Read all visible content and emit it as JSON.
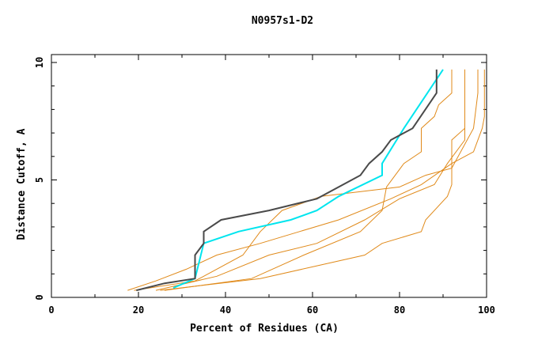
{
  "chart_data": {
    "type": "line",
    "title": "N0957s1-D2",
    "xlabel": "Percent of Residues (CA)",
    "ylabel": "Distance Cutoff, A",
    "xlim": [
      0,
      100
    ],
    "ylim": [
      0,
      10
    ],
    "x_ticks": [
      0,
      20,
      40,
      60,
      80,
      100
    ],
    "y_ticks": [
      0,
      5,
      10
    ],
    "grid": false,
    "colors": {
      "dark": "#4a4a4a",
      "cyan": "#00e5ee",
      "orange": "#e08a1a"
    },
    "series": [
      {
        "color": "#4a4a4a",
        "points": [
          [
            19.5,
            0.3
          ],
          [
            26,
            0.6
          ],
          [
            33,
            0.8
          ],
          [
            33,
            1.8
          ],
          [
            35,
            2.3
          ],
          [
            35,
            2.8
          ],
          [
            39,
            3.3
          ],
          [
            50,
            3.7
          ],
          [
            61,
            4.2
          ],
          [
            71,
            5.2
          ],
          [
            73,
            5.7
          ],
          [
            76,
            6.2
          ],
          [
            78,
            6.7
          ],
          [
            83,
            7.2
          ],
          [
            88.5,
            8.7
          ],
          [
            88.5,
            9.7
          ]
        ]
      },
      {
        "color": "#00e5ee",
        "points": [
          [
            28,
            0.4
          ],
          [
            33,
            0.8
          ],
          [
            35,
            2.3
          ],
          [
            43,
            2.8
          ],
          [
            55,
            3.3
          ],
          [
            61,
            3.7
          ],
          [
            66,
            4.3
          ],
          [
            76,
            5.2
          ],
          [
            76,
            5.7
          ],
          [
            81,
            7.2
          ],
          [
            90,
            9.7
          ]
        ]
      },
      {
        "color": "#e08a1a",
        "points": [
          [
            17.5,
            0.3
          ],
          [
            24,
            0.7
          ],
          [
            31,
            1.2
          ],
          [
            38,
            1.8
          ],
          [
            48,
            2.3
          ],
          [
            57,
            2.8
          ],
          [
            66,
            3.3
          ],
          [
            78,
            4.2
          ],
          [
            85,
            4.8
          ],
          [
            92,
            5.7
          ],
          [
            97,
            6.2
          ],
          [
            99,
            7.2
          ],
          [
            99.5,
            7.7
          ],
          [
            99.5,
            9.7
          ]
        ]
      },
      {
        "color": "#e08a1a",
        "points": [
          [
            19,
            0.3
          ],
          [
            33,
            0.7
          ],
          [
            44,
            1.8
          ],
          [
            48,
            2.8
          ],
          [
            53,
            3.7
          ],
          [
            62,
            4.3
          ],
          [
            80,
            4.7
          ],
          [
            86,
            5.2
          ],
          [
            92,
            5.5
          ],
          [
            97,
            7.2
          ],
          [
            98,
            8.7
          ],
          [
            98,
            9.7
          ]
        ]
      },
      {
        "color": "#e08a1a",
        "points": [
          [
            24,
            0.3
          ],
          [
            38,
            0.9
          ],
          [
            50,
            1.8
          ],
          [
            61,
            2.3
          ],
          [
            72,
            3.3
          ],
          [
            80,
            4.2
          ],
          [
            88,
            4.8
          ],
          [
            91,
            5.7
          ],
          [
            95,
            6.7
          ],
          [
            95,
            8.2
          ],
          [
            95,
            9.7
          ]
        ]
      },
      {
        "color": "#e08a1a",
        "points": [
          [
            26,
            0.3
          ],
          [
            46,
            0.8
          ],
          [
            58,
            1.8
          ],
          [
            71,
            2.8
          ],
          [
            76,
            3.7
          ],
          [
            77,
            4.7
          ],
          [
            81,
            5.7
          ],
          [
            85,
            6.2
          ],
          [
            85,
            7.2
          ],
          [
            88,
            7.7
          ],
          [
            89,
            8.2
          ],
          [
            92,
            8.7
          ],
          [
            92,
            9.7
          ]
        ]
      },
      {
        "color": "#e08a1a",
        "points": [
          [
            25,
            0.3
          ],
          [
            48,
            0.8
          ],
          [
            60,
            1.3
          ],
          [
            72,
            1.8
          ],
          [
            76,
            2.3
          ],
          [
            85,
            2.8
          ],
          [
            86,
            3.3
          ],
          [
            91,
            4.3
          ],
          [
            92,
            4.8
          ],
          [
            92,
            5.2
          ],
          [
            92,
            6.7
          ],
          [
            95,
            7.2
          ],
          [
            95,
            8.7
          ],
          [
            95,
            9.7
          ]
        ]
      }
    ]
  }
}
